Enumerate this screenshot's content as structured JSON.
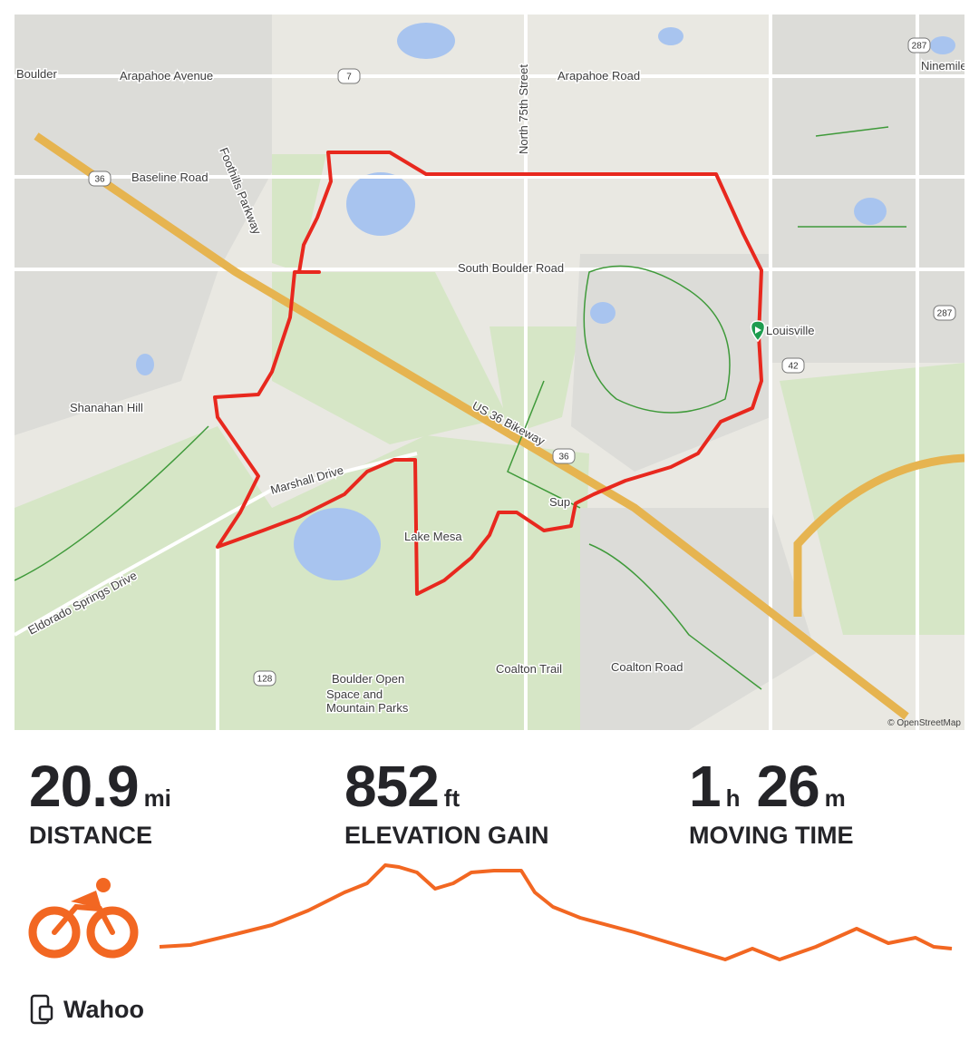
{
  "map": {
    "labels": [
      "Boulder",
      "Arapahoe Avenue",
      "Arapahoe Road",
      "North 75th Street",
      "Baseline Road",
      "Foothills Parkway",
      "South Boulder Road",
      "Louisville",
      "Ninemile Corner",
      "Shanahan Hill",
      "US 36 Bikeway",
      "Marshall Drive",
      "Lake Mesa",
      "Eldorado Springs Drive",
      "Coalton Trail",
      "Coalton Road",
      "Boulder Open",
      "Space and",
      "Mountain Parks",
      "Sup"
    ],
    "shields": [
      "7",
      "36",
      "287",
      "287",
      "42",
      "36",
      "128"
    ],
    "attribution": "© OpenStreetMap"
  },
  "stats": [
    {
      "value": "20.9",
      "unit": "mi",
      "label": "DISTANCE"
    },
    {
      "value": "852",
      "unit": "ft",
      "label": "ELEVATION GAIN"
    },
    {
      "value": "1",
      "unit": "h",
      "value2": "26",
      "unit2": "m",
      "label": "MOVING TIME"
    }
  ],
  "device": "Wahoo"
}
